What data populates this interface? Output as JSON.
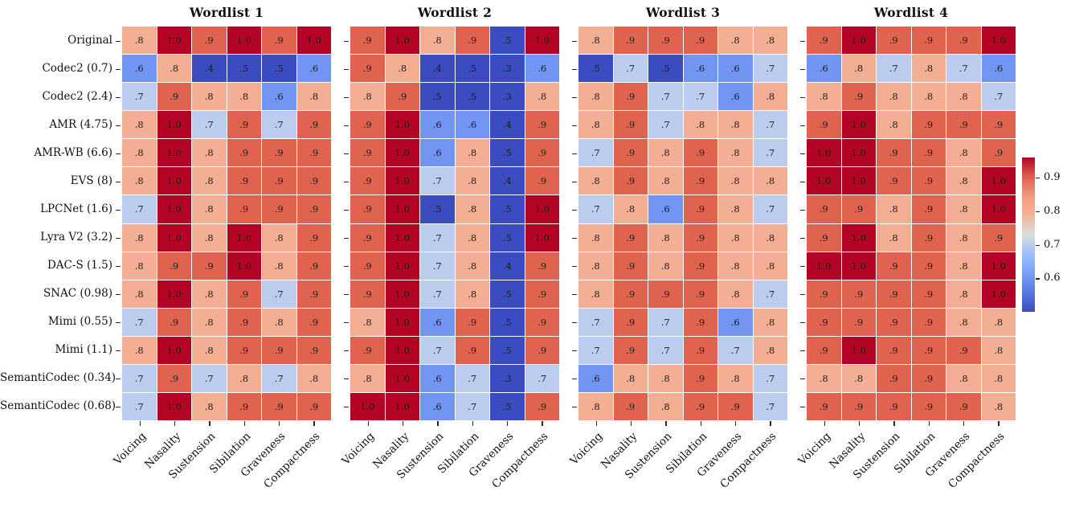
{
  "figure": {
    "background": "#ffffff"
  },
  "chart_data": {
    "type": "heatmap",
    "rows": [
      "Original",
      "Codec2 (0.7)",
      "Codec2 (2.4)",
      "AMR (4.75)",
      "AMR-WB (6.6)",
      "EVS (8)",
      "LPCNet (1.6)",
      "Lyra V2 (3.2)",
      "DAC-S (1.5)",
      "SNAC (0.98)",
      "Mimi (0.55)",
      "Mimi (1.1)",
      "SemantiCodec (0.34)",
      "SemantiCodec (0.68)"
    ],
    "columns": [
      "Voicing",
      "Nasality",
      "Sustension",
      "Sibilation",
      "Graveness",
      "Compactness"
    ],
    "panels": [
      {
        "title": "Wordlist 1",
        "values": [
          [
            ".8",
            "1.0",
            ".9",
            "1.0",
            ".9",
            "1.0"
          ],
          [
            ".6",
            ".8",
            ".4",
            ".5",
            ".5",
            ".6"
          ],
          [
            ".7",
            ".9",
            ".8",
            ".8",
            ".6",
            ".8"
          ],
          [
            ".8",
            "1.0",
            ".7",
            ".9",
            ".7",
            ".9"
          ],
          [
            ".8",
            "1.0",
            ".8",
            ".9",
            ".9",
            ".9"
          ],
          [
            ".8",
            "1.0",
            ".8",
            ".9",
            ".9",
            ".9"
          ],
          [
            ".7",
            "1.0",
            ".8",
            ".9",
            ".9",
            ".9"
          ],
          [
            ".8",
            "1.0",
            ".8",
            "1.0",
            ".8",
            ".9"
          ],
          [
            ".8",
            ".9",
            ".9",
            "1.0",
            ".8",
            ".9"
          ],
          [
            ".8",
            "1.0",
            ".8",
            ".9",
            ".7",
            ".9"
          ],
          [
            ".7",
            ".9",
            ".8",
            ".9",
            ".8",
            ".9"
          ],
          [
            ".8",
            "1.0",
            ".8",
            ".9",
            ".9",
            ".9"
          ],
          [
            ".7",
            ".9",
            ".7",
            ".8",
            ".7",
            ".8"
          ],
          [
            ".7",
            "1.0",
            ".8",
            ".9",
            ".9",
            ".9"
          ]
        ]
      },
      {
        "title": "Wordlist 2",
        "values": [
          [
            ".9",
            "1.0",
            ".8",
            ".9",
            ".5",
            "1.0"
          ],
          [
            ".9",
            ".8",
            ".4",
            ".5",
            ".3",
            ".6"
          ],
          [
            ".8",
            ".9",
            ".5",
            ".5",
            ".3",
            ".8"
          ],
          [
            ".9",
            "1.0",
            ".6",
            ".6",
            ".4",
            ".9"
          ],
          [
            ".9",
            "1.0",
            ".6",
            ".8",
            ".5",
            ".9"
          ],
          [
            ".9",
            "1.0",
            ".7",
            ".8",
            ".4",
            ".9"
          ],
          [
            ".9",
            "1.0",
            ".5",
            ".8",
            ".5",
            "1.0"
          ],
          [
            ".9",
            "1.0",
            ".7",
            ".8",
            ".5",
            "1.0"
          ],
          [
            ".9",
            "1.0",
            ".7",
            ".8",
            ".4",
            ".9"
          ],
          [
            ".9",
            "1.0",
            ".7",
            ".8",
            ".5",
            ".9"
          ],
          [
            ".8",
            "1.0",
            ".6",
            ".9",
            ".5",
            ".9"
          ],
          [
            ".9",
            "1.0",
            ".7",
            ".9",
            ".5",
            ".9"
          ],
          [
            ".8",
            "1.0",
            ".6",
            ".7",
            ".3",
            ".7"
          ],
          [
            "1.0",
            "1.0",
            ".6",
            ".7",
            ".5",
            ".9"
          ]
        ]
      },
      {
        "title": "Wordlist 3",
        "values": [
          [
            ".8",
            ".9",
            ".9",
            ".9",
            ".8",
            ".8"
          ],
          [
            ".5",
            ".7",
            ".5",
            ".6",
            ".6",
            ".7"
          ],
          [
            ".8",
            ".9",
            ".7",
            ".7",
            ".6",
            ".8"
          ],
          [
            ".8",
            ".9",
            ".7",
            ".8",
            ".8",
            ".7"
          ],
          [
            ".7",
            ".9",
            ".8",
            ".9",
            ".8",
            ".7"
          ],
          [
            ".8",
            ".9",
            ".8",
            ".9",
            ".8",
            ".8"
          ],
          [
            ".7",
            ".8",
            ".6",
            ".9",
            ".8",
            ".7"
          ],
          [
            ".8",
            ".9",
            ".8",
            ".9",
            ".8",
            ".8"
          ],
          [
            ".8",
            ".9",
            ".8",
            ".9",
            ".8",
            ".8"
          ],
          [
            ".8",
            ".9",
            ".9",
            ".9",
            ".8",
            ".7"
          ],
          [
            ".7",
            ".9",
            ".7",
            ".9",
            ".6",
            ".8"
          ],
          [
            ".7",
            ".9",
            ".7",
            ".9",
            ".7",
            ".8"
          ],
          [
            ".6",
            ".8",
            ".8",
            ".9",
            ".8",
            ".7"
          ],
          [
            ".8",
            ".9",
            ".8",
            ".9",
            ".9",
            ".7"
          ]
        ]
      },
      {
        "title": "Wordlist 4",
        "values": [
          [
            ".9",
            "1.0",
            ".9",
            ".9",
            ".9",
            "1.0"
          ],
          [
            ".6",
            ".8",
            ".7",
            ".8",
            ".7",
            ".6"
          ],
          [
            ".8",
            ".9",
            ".8",
            ".8",
            ".8",
            ".7"
          ],
          [
            ".9",
            "1.0",
            ".8",
            ".9",
            ".9",
            ".9"
          ],
          [
            "1.0",
            "1.0",
            ".9",
            ".9",
            ".8",
            ".9"
          ],
          [
            "1.0",
            "1.0",
            ".9",
            ".9",
            ".8",
            "1.0"
          ],
          [
            ".9",
            ".9",
            ".8",
            ".9",
            ".8",
            "1.0"
          ],
          [
            ".9",
            "1.0",
            ".8",
            ".9",
            ".8",
            ".9"
          ],
          [
            "1.0",
            "1.0",
            ".9",
            ".9",
            ".8",
            "1.0"
          ],
          [
            ".9",
            ".9",
            ".9",
            ".9",
            ".8",
            "1.0"
          ],
          [
            ".9",
            ".9",
            ".9",
            ".9",
            ".8",
            ".8"
          ],
          [
            ".9",
            "1.0",
            ".9",
            ".9",
            ".9",
            ".8"
          ],
          [
            ".8",
            ".8",
            ".9",
            ".9",
            ".8",
            ".8"
          ],
          [
            ".9",
            ".9",
            ".9",
            ".9",
            ".9",
            ".8"
          ]
        ]
      }
    ],
    "colormap": {
      "name": "coolwarm",
      "vmin": 0.5,
      "vmax": 0.96,
      "anchors": [
        "#3B4CC0",
        "#5977E3",
        "#7B9FF9",
        "#9CBEFF",
        "#DCDCDC",
        "#F4B49B",
        "#F49A7B",
        "#DE604D",
        "#B40426"
      ]
    },
    "colorbar": {
      "ticks": [
        "0.9",
        "0.8",
        "0.7",
        "0.6"
      ],
      "tick_values": [
        0.9,
        0.8,
        0.7,
        0.6
      ],
      "position": "right"
    },
    "layout": {
      "grid_lines": "white",
      "cell_text_color": "#1c1c1c",
      "x_tick_rotation": 45
    }
  }
}
